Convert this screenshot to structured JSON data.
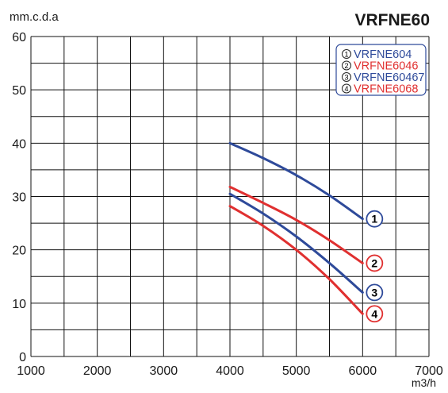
{
  "chart_data": {
    "type": "line",
    "title": "VRFNE60",
    "ylabel": "mm.c.d.a",
    "xlabel": "m3/h",
    "xlim": [
      1000,
      7000
    ],
    "ylim": [
      0,
      60
    ],
    "x_ticks": [
      1000,
      2000,
      3000,
      4000,
      5000,
      6000,
      7000
    ],
    "y_ticks": [
      0,
      10,
      20,
      30,
      40,
      50,
      60
    ],
    "grid": true,
    "legend_position": "top-right",
    "series": [
      {
        "name": "VRFNE604",
        "marker": "1",
        "color": "#2e4a9a",
        "x": [
          4000,
          4500,
          5000,
          5500,
          6000
        ],
        "y": [
          40,
          37.2,
          34,
          30.2,
          25.8
        ]
      },
      {
        "name": "VRFNE6046",
        "marker": "2",
        "color": "#e03030",
        "x": [
          4000,
          4500,
          5000,
          5500,
          6000
        ],
        "y": [
          31.8,
          28.8,
          25.6,
          21.8,
          17.5
        ]
      },
      {
        "name": "VRFNE60467",
        "marker": "3",
        "color": "#2e4a9a",
        "x": [
          4000,
          4500,
          5000,
          5500,
          6000
        ],
        "y": [
          30.5,
          26.8,
          22.5,
          17.5,
          12
        ]
      },
      {
        "name": "VRFNE6068",
        "marker": "4",
        "color": "#e03030",
        "x": [
          4000,
          4500,
          5000,
          5500,
          6000
        ],
        "y": [
          28.2,
          24.5,
          20,
          14.5,
          8
        ]
      }
    ]
  }
}
